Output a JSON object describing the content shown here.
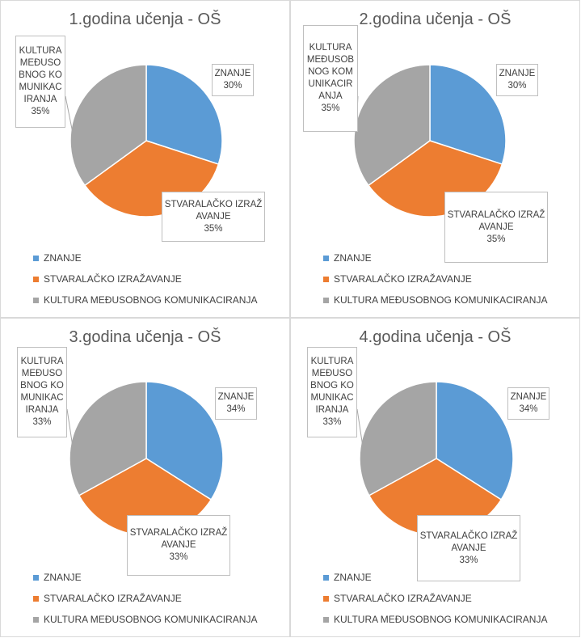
{
  "colors": {
    "znanje": "#5b9bd5",
    "stvaralacko": "#ed7d31",
    "kultura": "#a5a5a5"
  },
  "chart_data": [
    {
      "type": "pie",
      "title": "1.godina učenja - OŠ",
      "categories": [
        "ZNANJE",
        "STVARALAČKO IZRAŽAVANJE",
        "KULTURA MEĐUSOBNOG KOMUNIKACIRANJA"
      ],
      "values": [
        30,
        35,
        35
      ],
      "labels": [
        {
          "name": "ZNANJE",
          "value": "30%"
        },
        {
          "name": "STVARALAČKO IZRAŽAVANJE",
          "value": "35%"
        },
        {
          "name": "KULTURA MEĐUSOBNOG KOMUNIKACIRANJA",
          "value": "35%"
        }
      ],
      "legend": [
        "ZNANJE",
        "STVARALAČKO IZRAŽAVANJE",
        "KULTURA MEĐUSOBNOG KOMUNIKACIRANJA"
      ],
      "legend_position": "bottom"
    },
    {
      "type": "pie",
      "title": "2.godina učenja - OŠ",
      "categories": [
        "ZNANJE",
        "STVARALAČKO IZRAŽAVANJE",
        "KULTURA MEĐUSOBNOG KOMUNIKACIRANJA"
      ],
      "values": [
        30,
        35,
        35
      ],
      "labels": [
        {
          "name": "ZNANJE",
          "value": "30%"
        },
        {
          "name": "STVARALAČKO IZRAŽAVANJE",
          "value": "35%"
        },
        {
          "name": "KULTURA MEĐUSOBNOG KOMUNIKACIRANJA",
          "value": "35%"
        }
      ],
      "legend": [
        "ZNANJE",
        "STVARALAČKO IZRAŽAVANJE",
        "KULTURA MEĐUSOBNOG KOMUNIKACIRANJA"
      ],
      "legend_position": "bottom"
    },
    {
      "type": "pie",
      "title": "3.godina učenja - OŠ",
      "categories": [
        "ZNANJE",
        "STVARALAČKO IZRAŽAVANJE",
        "KULTURA MEĐUSOBNOG KOMUNIKACIRANJA"
      ],
      "values": [
        34,
        33,
        33
      ],
      "labels": [
        {
          "name": "ZNANJE",
          "value": "34%"
        },
        {
          "name": "STVARALAČKO IZRAŽAVANJE",
          "value": "33%"
        },
        {
          "name": "KULTURA MEĐUSOBNOG KOMUNIKACIRANJA",
          "value": "33%"
        }
      ],
      "legend": [
        "ZNANJE",
        "STVARALAČKO IZRAŽAVANJE",
        "KULTURA MEĐUSOBNOG KOMUNIKACIRANJA"
      ],
      "legend_position": "bottom"
    },
    {
      "type": "pie",
      "title": "4.godina učenja - OŠ",
      "categories": [
        "ZNANJE",
        "STVARALAČKO IZRAŽAVANJE",
        "KULTURA MEĐUSOBNOG KOMUNIKACIRANJA"
      ],
      "values": [
        34,
        33,
        33
      ],
      "labels": [
        {
          "name": "ZNANJE",
          "value": "34%"
        },
        {
          "name": "STVARALAČKO IZRAŽAVANJE",
          "value": "33%"
        },
        {
          "name": "KULTURA MEĐUSOBNOG KOMUNIKACIRANJA",
          "value": "33%"
        }
      ],
      "legend": [
        "ZNANJE",
        "STVARALAČKO IZRAŽAVANJE",
        "KULTURA MEĐUSOBNOG KOMUNIKACIRANJA"
      ],
      "legend_position": "bottom"
    }
  ]
}
